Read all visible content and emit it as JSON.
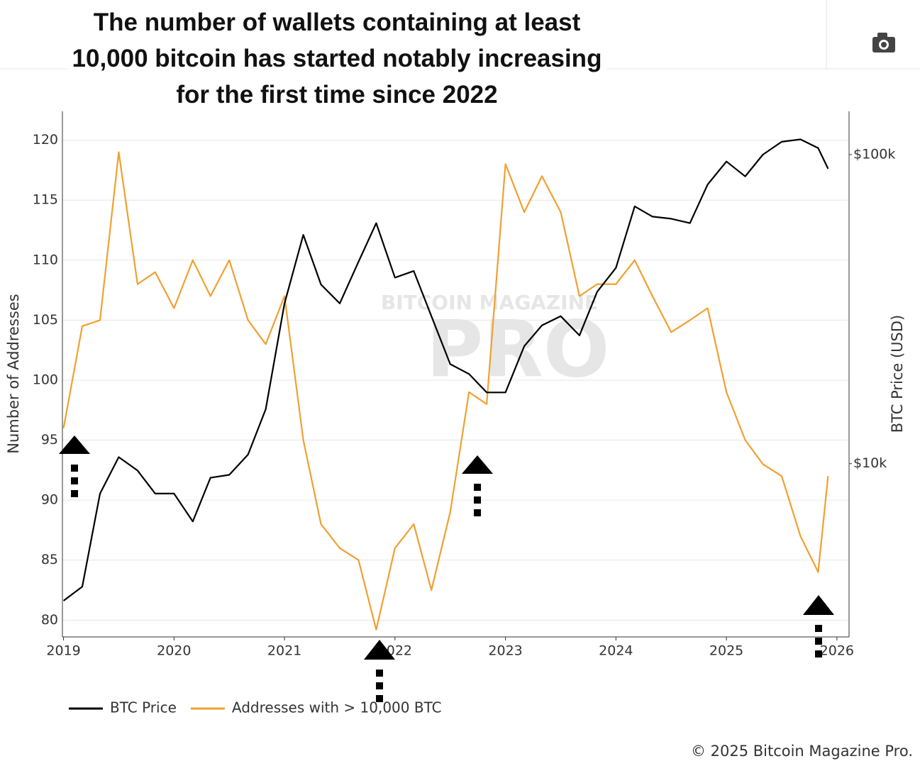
{
  "chart_data": {
    "type": "line",
    "title": "The number of wallets containing at least 10,000 bitcoin has started notably increasing for the first time since 2022",
    "y_label": "Number of Addresses",
    "y2_label": "BTC Price (USD)",
    "watermark": [
      "BITCOIN MAGAZINE",
      "PRO"
    ],
    "copyright": "© 2025 Bitcoin Magazine Pro.",
    "x": [
      2019,
      2019.17,
      2019.33,
      2019.5,
      2019.67,
      2019.83,
      2020,
      2020.17,
      2020.33,
      2020.5,
      2020.67,
      2020.83,
      2021,
      2021.17,
      2021.33,
      2021.5,
      2021.67,
      2021.83,
      2022,
      2022.17,
      2022.33,
      2022.5,
      2022.67,
      2022.83,
      2023,
      2023.17,
      2023.33,
      2023.5,
      2023.67,
      2023.83,
      2024,
      2024.17,
      2024.33,
      2024.5,
      2024.67,
      2024.83,
      2025,
      2025.17,
      2025.33,
      2025.5,
      2025.67,
      2025.83,
      2025.92
    ],
    "xlim": [
      2018.99,
      2026.11
    ],
    "xticks": [
      2019,
      2020,
      2021,
      2022,
      2023,
      2024,
      2025,
      2026
    ],
    "ylim": [
      78.6,
      122.4
    ],
    "yticks": [
      80,
      85,
      90,
      95,
      100,
      105,
      110,
      115,
      120
    ],
    "y2lim": [
      2750,
      138000
    ],
    "y2log": true,
    "y2ticks": [
      {
        "value": 10000,
        "label": "$10k"
      },
      {
        "value": 100000,
        "label": "$100k"
      }
    ],
    "grid": true,
    "series": [
      {
        "name": "BTC Price",
        "color": "#000000",
        "axis": "y2",
        "values": [
          3600,
          4000,
          8000,
          10500,
          9500,
          8000,
          8000,
          6500,
          9000,
          9200,
          10700,
          15000,
          33000,
          55000,
          38000,
          33000,
          45000,
          60000,
          40000,
          42000,
          30000,
          21000,
          19500,
          17000,
          17000,
          24000,
          28000,
          30000,
          26000,
          36000,
          43000,
          68000,
          63000,
          62000,
          60000,
          80000,
          95000,
          85000,
          100000,
          110000,
          112000,
          105000,
          90000
        ]
      },
      {
        "name": "Addresses with > 10,000 BTC",
        "color": "#f0a030",
        "values": [
          96,
          104.5,
          105,
          119,
          108,
          109,
          106,
          110,
          107,
          110,
          105,
          103,
          107,
          95,
          88,
          86,
          85,
          79.2,
          86,
          88,
          82.5,
          89,
          99,
          98,
          118,
          114,
          117,
          114,
          107,
          108,
          108,
          110,
          107,
          104,
          105,
          106,
          99,
          95,
          93,
          92,
          87,
          84,
          92
        ]
      }
    ]
  }
}
